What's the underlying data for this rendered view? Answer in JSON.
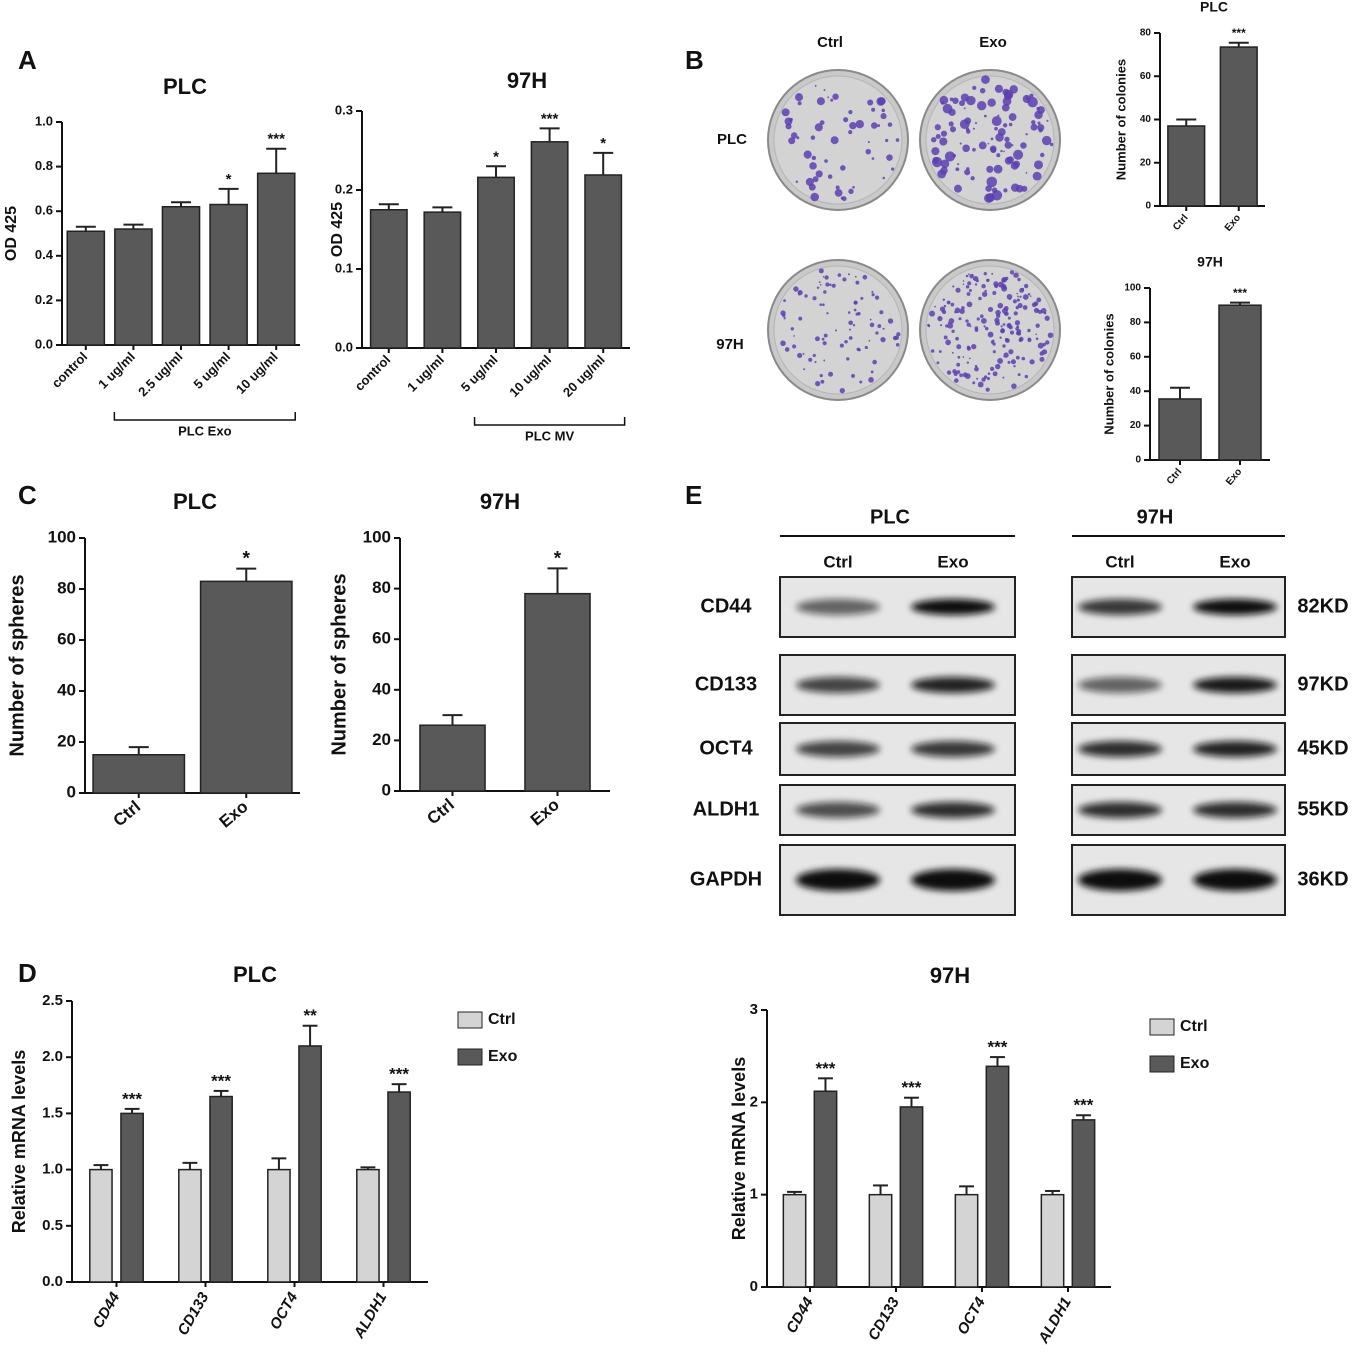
{
  "panel_labels": [
    "A",
    "B",
    "C",
    "D",
    "E"
  ],
  "colony": {
    "columns": [
      "Ctrl",
      "Exo"
    ],
    "rows": [
      "PLC",
      "97H"
    ]
  },
  "western_blot": {
    "groups": [
      {
        "name": "PLC",
        "lanes": [
          "Ctrl",
          "Exo"
        ]
      },
      {
        "name": "97H",
        "lanes": [
          "Ctrl",
          "Exo"
        ]
      }
    ],
    "proteins": [
      "CD44",
      "CD133",
      "OCT4",
      "ALDH1",
      "GAPDH"
    ],
    "sizes": [
      "82KD",
      "97KD",
      "45KD",
      "55KD",
      "36KD"
    ]
  },
  "chart_data": [
    {
      "type": "bar",
      "title": "PLC",
      "ylabel": "OD 425",
      "group_label": "PLC Exo",
      "color": "#595959",
      "categories": [
        "control",
        "1 ug/ml",
        "2.5 ug/ml",
        "5 ug/ml",
        "10 ug/ml"
      ],
      "values": [
        0.51,
        0.52,
        0.62,
        0.63,
        0.77
      ],
      "errors": [
        0.02,
        0.02,
        0.02,
        0.07,
        0.11
      ],
      "annotations": [
        null,
        null,
        null,
        "*",
        "***"
      ],
      "ylim": [
        0,
        1.0
      ],
      "yticks": [
        {
          "value": 0,
          "label": "0.0"
        },
        0.2,
        0.4,
        0.6,
        0.8,
        {
          "value": 1,
          "label": "1.0"
        }
      ]
    },
    {
      "type": "bar",
      "title": "97H",
      "ylabel": "OD 425",
      "group_label": "PLC MV",
      "color": "#595959",
      "categories": [
        "control",
        "1 ug/ml",
        "5 ug/ml",
        "10 ug/ml",
        "20 ug/ml"
      ],
      "values": [
        0.175,
        0.172,
        0.216,
        0.261,
        0.219
      ],
      "errors": [
        0.007,
        0.006,
        0.014,
        0.017,
        0.028
      ],
      "annotations": [
        null,
        null,
        "*",
        "***",
        "*"
      ],
      "ylim": [
        0,
        0.3
      ],
      "yticks": [
        {
          "value": 0,
          "label": "0.0"
        },
        0.1,
        0.2,
        0.3
      ]
    },
    {
      "type": "bar",
      "title": "PLC",
      "ylabel": "Number of colonies",
      "color": "#595959",
      "categories": [
        "Ctrl",
        "Exo"
      ],
      "values": [
        37,
        73.5
      ],
      "errors": [
        3,
        2
      ],
      "annotations": [
        null,
        "***"
      ],
      "ylim": [
        0,
        80
      ],
      "yticks": [
        0,
        20,
        40,
        60,
        80
      ]
    },
    {
      "type": "bar",
      "title": "97H",
      "ylabel": "Number of colonies",
      "color": "#595959",
      "categories": [
        "Ctrl",
        "Exo"
      ],
      "values": [
        35.5,
        90
      ],
      "errors": [
        6.5,
        1.5
      ],
      "annotations": [
        null,
        "***"
      ],
      "ylim": [
        0,
        100
      ],
      "yticks": [
        0,
        20,
        40,
        60,
        80,
        100
      ]
    },
    {
      "type": "bar",
      "title": "PLC",
      "ylabel": "Number of spheres",
      "color": "#595959",
      "categories": [
        "Ctrl",
        "Exo"
      ],
      "values": [
        15,
        83
      ],
      "errors": [
        3,
        5
      ],
      "annotations": [
        null,
        "*"
      ],
      "ylim": [
        0,
        100
      ],
      "yticks": [
        0,
        20,
        40,
        60,
        80,
        100
      ]
    },
    {
      "type": "bar",
      "title": "97H",
      "ylabel": "Number of spheres",
      "color": "#595959",
      "categories": [
        "Ctrl",
        "Exo"
      ],
      "values": [
        26,
        78
      ],
      "errors": [
        4,
        10
      ],
      "annotations": [
        null,
        "*"
      ],
      "ylim": [
        0,
        100
      ],
      "yticks": [
        0,
        20,
        40,
        60,
        80,
        100
      ]
    },
    {
      "type": "bar",
      "title": "PLC",
      "ylabel": "Relative mRNA levels",
      "categories": [
        "CD44",
        "CD133",
        "OCT4",
        "ALDH1"
      ],
      "series": [
        {
          "name": "Ctrl",
          "color": "#d4d4d4",
          "values": [
            1,
            1,
            1,
            1
          ],
          "errors": [
            0.04,
            0.06,
            0.1,
            0.02
          ],
          "annotations": [
            null,
            null,
            null,
            null
          ]
        },
        {
          "name": "Exo",
          "color": "#595959",
          "values": [
            1.5,
            1.65,
            2.1,
            1.69
          ],
          "errors": [
            0.04,
            0.05,
            0.18,
            0.07
          ],
          "annotations": [
            "***",
            "***",
            "**",
            "***"
          ]
        }
      ],
      "ylim": [
        0,
        2.5
      ],
      "yticks": [
        {
          "value": 0,
          "label": "0.0"
        },
        0.5,
        {
          "value": 1,
          "label": "1.0"
        },
        1.5,
        {
          "value": 2,
          "label": "2.0"
        },
        2.5
      ]
    },
    {
      "type": "bar",
      "title": "97H",
      "ylabel": "Relative mRNA levels",
      "categories": [
        "CD44",
        "CD133",
        "OCT4",
        "ALDH1"
      ],
      "series": [
        {
          "name": "Ctrl",
          "color": "#d4d4d4",
          "values": [
            1,
            1,
            1,
            1
          ],
          "errors": [
            0.03,
            0.1,
            0.09,
            0.04
          ],
          "annotations": [
            null,
            null,
            null,
            null
          ]
        },
        {
          "name": "Exo",
          "color": "#595959",
          "values": [
            2.12,
            1.95,
            2.39,
            1.81
          ],
          "errors": [
            0.14,
            0.1,
            0.1,
            0.05
          ],
          "annotations": [
            "***",
            "***",
            "***",
            "***"
          ]
        }
      ],
      "ylim": [
        0,
        3
      ],
      "yticks": [
        0,
        1,
        2,
        3
      ]
    }
  ]
}
